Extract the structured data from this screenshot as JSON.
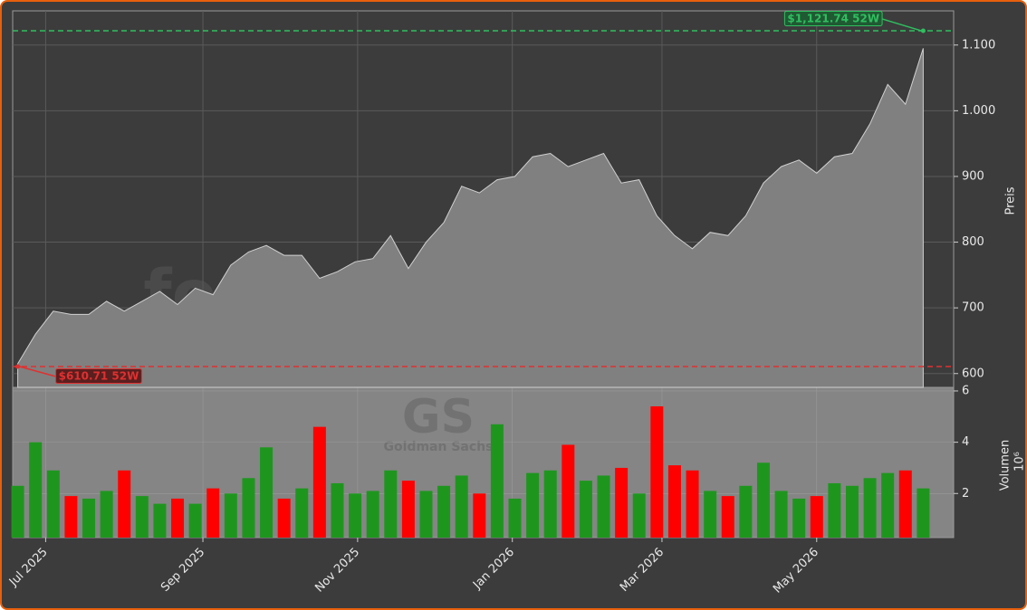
{
  "chart_data": [
    {
      "type": "area",
      "ylabel": "Preis",
      "color": "#808080",
      "line_color": "#d0d0d0",
      "grid": true,
      "watermark": "forexsignale.trade",
      "xlim": [
        "2025-06-18",
        "2026-06-24"
      ],
      "x": [
        "2025-06-20",
        "2025-06-27",
        "2025-07-04",
        "2025-07-11",
        "2025-07-18",
        "2025-07-25",
        "2025-08-01",
        "2025-08-08",
        "2025-08-15",
        "2025-08-22",
        "2025-08-29",
        "2025-09-05",
        "2025-09-12",
        "2025-09-19",
        "2025-09-26",
        "2025-10-03",
        "2025-10-10",
        "2025-10-17",
        "2025-10-24",
        "2025-10-31",
        "2025-11-07",
        "2025-11-14",
        "2025-11-21",
        "2025-11-28",
        "2025-12-05",
        "2025-12-12",
        "2025-12-19",
        "2025-12-26",
        "2026-01-02",
        "2026-01-09",
        "2026-01-16",
        "2026-01-23",
        "2026-01-30",
        "2026-02-06",
        "2026-02-13",
        "2026-02-20",
        "2026-02-27",
        "2026-03-06",
        "2026-03-13",
        "2026-03-20",
        "2026-03-27",
        "2026-04-03",
        "2026-04-10",
        "2026-04-17",
        "2026-04-24",
        "2026-05-01",
        "2026-05-08",
        "2026-05-15",
        "2026-05-22",
        "2026-05-29",
        "2026-06-05",
        "2026-06-12"
      ],
      "values": [
        615,
        660,
        695,
        690,
        690,
        710,
        695,
        710,
        725,
        705,
        730,
        720,
        765,
        785,
        795,
        780,
        780,
        745,
        755,
        770,
        775,
        810,
        760,
        800,
        830,
        885,
        875,
        895,
        900,
        930,
        935,
        915,
        925,
        935,
        890,
        895,
        840,
        810,
        790,
        815,
        810,
        840,
        890,
        915,
        925,
        905,
        930,
        935,
        980,
        1040,
        1010,
        1095
      ],
      "ylim": [
        579,
        1152
      ],
      "yticks": [
        600,
        700,
        800,
        900,
        {
          "value": 1000,
          "label": "1.000"
        },
        {
          "value": 1100,
          "label": "1.100"
        }
      ],
      "annotations": [
        {
          "x": "2026-06-12",
          "value": 1121.74,
          "label": "$1,121.74 52W",
          "color": "#2fbf5f"
        },
        {
          "x": "2025-06-20",
          "value": 610.71,
          "label": "$610.71 52W",
          "color": "#e03030"
        }
      ]
    },
    {
      "type": "bar",
      "ylabel": "Volumen",
      "yscale_label": "10⁶",
      "up_color": "#1e961e",
      "down_color": "#ff0000",
      "grid": true,
      "watermark": "GS",
      "watermark_sub": "Goldman Sachs",
      "xlim": [
        "2025-06-18",
        "2026-06-24"
      ],
      "xticks": [
        {
          "value": "2025-07-01",
          "label": "Jul 2025"
        },
        {
          "value": "2025-09-01",
          "label": "Sep 2025"
        },
        {
          "value": "2025-11-01",
          "label": "Nov 2025"
        },
        {
          "value": "2026-01-01",
          "label": "Jan 2026"
        },
        {
          "value": "2026-03-01",
          "label": "Mar 2026"
        },
        {
          "value": "2026-05-01",
          "label": "May 2026"
        }
      ],
      "values": [
        2.3,
        4.0,
        2.9,
        1.9,
        1.8,
        2.1,
        2.9,
        1.9,
        1.6,
        1.8,
        1.6,
        2.2,
        2.0,
        2.6,
        3.8,
        1.8,
        2.2,
        4.6,
        2.4,
        2.0,
        2.1,
        2.9,
        2.5,
        2.1,
        2.3,
        2.7,
        2.0,
        4.7,
        1.8,
        2.8,
        2.9,
        3.9,
        2.5,
        2.7,
        3.0,
        2.0,
        5.4,
        3.1,
        2.9,
        2.1,
        1.9,
        2.3,
        3.2,
        2.1,
        1.8,
        1.9,
        2.4,
        2.3,
        2.6,
        2.8,
        2.9,
        2.2
      ],
      "ylim": [
        0.28,
        6.14
      ],
      "yticks": [
        2,
        4,
        6
      ]
    }
  ]
}
